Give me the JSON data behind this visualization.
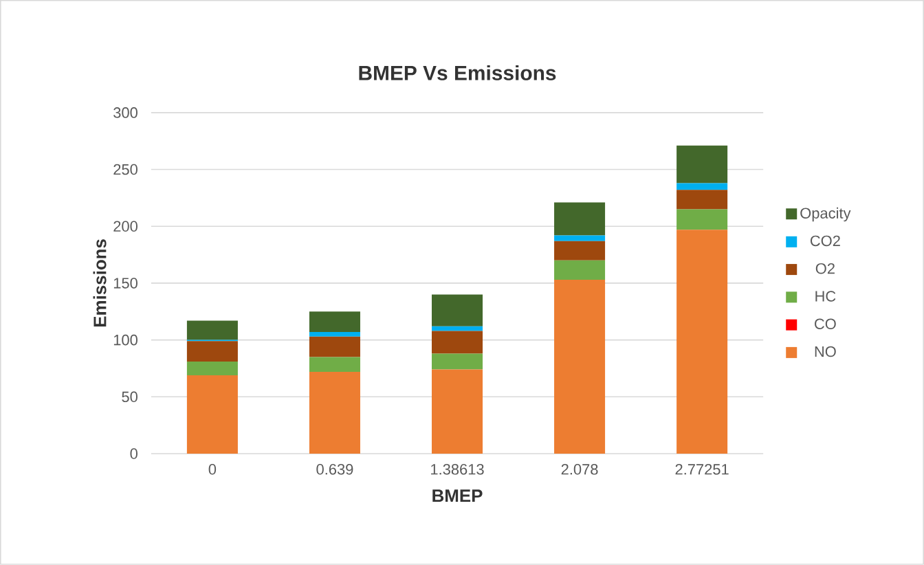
{
  "chart_data": {
    "type": "bar",
    "title": "BMEP Vs Emissions",
    "xlabel": "BMEP",
    "ylabel": "Emissions",
    "categories": [
      "0",
      "0.639",
      "1.38613",
      "2.078",
      "2.77251"
    ],
    "stacked": true,
    "grid": "y",
    "legend": "right",
    "ylim": [
      0,
      300
    ],
    "yticks": [
      0,
      50,
      100,
      150,
      200,
      250,
      300
    ],
    "series": [
      {
        "name": "NO",
        "color": "#ed7d31",
        "values": [
          69,
          72,
          74,
          153,
          197
        ]
      },
      {
        "name": "CO",
        "color": "#ff0000",
        "values": [
          null,
          null,
          null,
          null,
          null
        ]
      },
      {
        "name": "HC",
        "color": "#70ad47",
        "values": [
          12,
          13,
          14,
          17,
          18
        ]
      },
      {
        "name": "O2",
        "color": "#9e480e",
        "values": [
          18,
          18,
          20,
          17,
          17
        ]
      },
      {
        "name": "CO2",
        "color": "#00b0f0",
        "values": [
          1,
          4,
          4,
          5,
          6
        ]
      },
      {
        "name": "Opacity",
        "color": "#43682b",
        "values": [
          17,
          18,
          28,
          29,
          33
        ]
      }
    ]
  }
}
